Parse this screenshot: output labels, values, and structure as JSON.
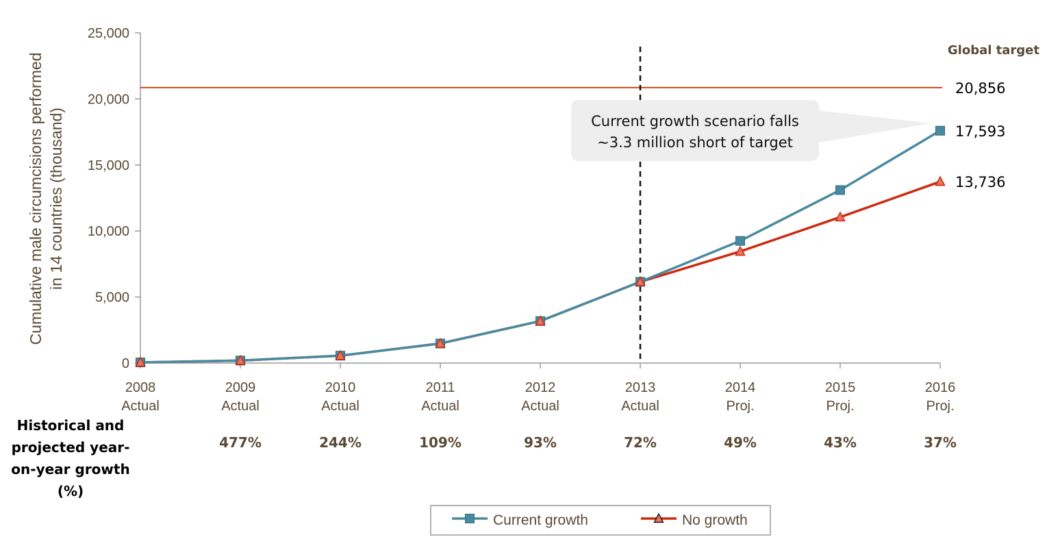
{
  "chart_data": {
    "type": "line",
    "ylabel": [
      "Cumulative male circumcisions performed",
      "in 14 countries (thousand)"
    ],
    "ylim": [
      0,
      25000
    ],
    "yticks": [
      "25,000",
      "20,000",
      "15,000",
      "10,000",
      "5,000",
      "0"
    ],
    "ytick_values": [
      25000,
      20000,
      15000,
      10000,
      5000,
      0
    ],
    "categories": [
      {
        "year": "2008",
        "kind": "Actual"
      },
      {
        "year": "2009",
        "kind": "Actual"
      },
      {
        "year": "2010",
        "kind": "Actual"
      },
      {
        "year": "2011",
        "kind": "Actual"
      },
      {
        "year": "2012",
        "kind": "Actual"
      },
      {
        "year": "2013",
        "kind": "Actual"
      },
      {
        "year": "2014",
        "kind": "Proj."
      },
      {
        "year": "2015",
        "kind": "Proj."
      },
      {
        "year": "2016",
        "kind": "Proj."
      }
    ],
    "series": [
      {
        "name": "Current growth",
        "color": "#4a8aa0",
        "marker": "square",
        "values": [
          50,
          190,
          560,
          1480,
          3180,
          6150,
          9250,
          13100,
          17593
        ]
      },
      {
        "name": "No growth",
        "color": "#cc2a10",
        "marker": "triangle",
        "values": [
          50,
          190,
          560,
          1480,
          3180,
          6150,
          8450,
          11050,
          13736
        ]
      }
    ],
    "target": {
      "label": "Global target",
      "value": 20856,
      "value_label": "20,856",
      "color": "#cc4a1a"
    },
    "end_labels": [
      "17,593",
      "13,736"
    ],
    "divider_after": "2013",
    "callout": [
      "Current growth scenario falls",
      "~3.3 million short of target"
    ],
    "growth_row": {
      "label": [
        "Historical and",
        "projected year-",
        "on-year growth",
        "(%)"
      ],
      "values": [
        "",
        "477%",
        "244%",
        "109%",
        "93%",
        "72%",
        "49%",
        "43%",
        "37%"
      ]
    },
    "legend": [
      "Current growth",
      "No growth"
    ],
    "legend_position": "bottom-center",
    "grid": false
  }
}
